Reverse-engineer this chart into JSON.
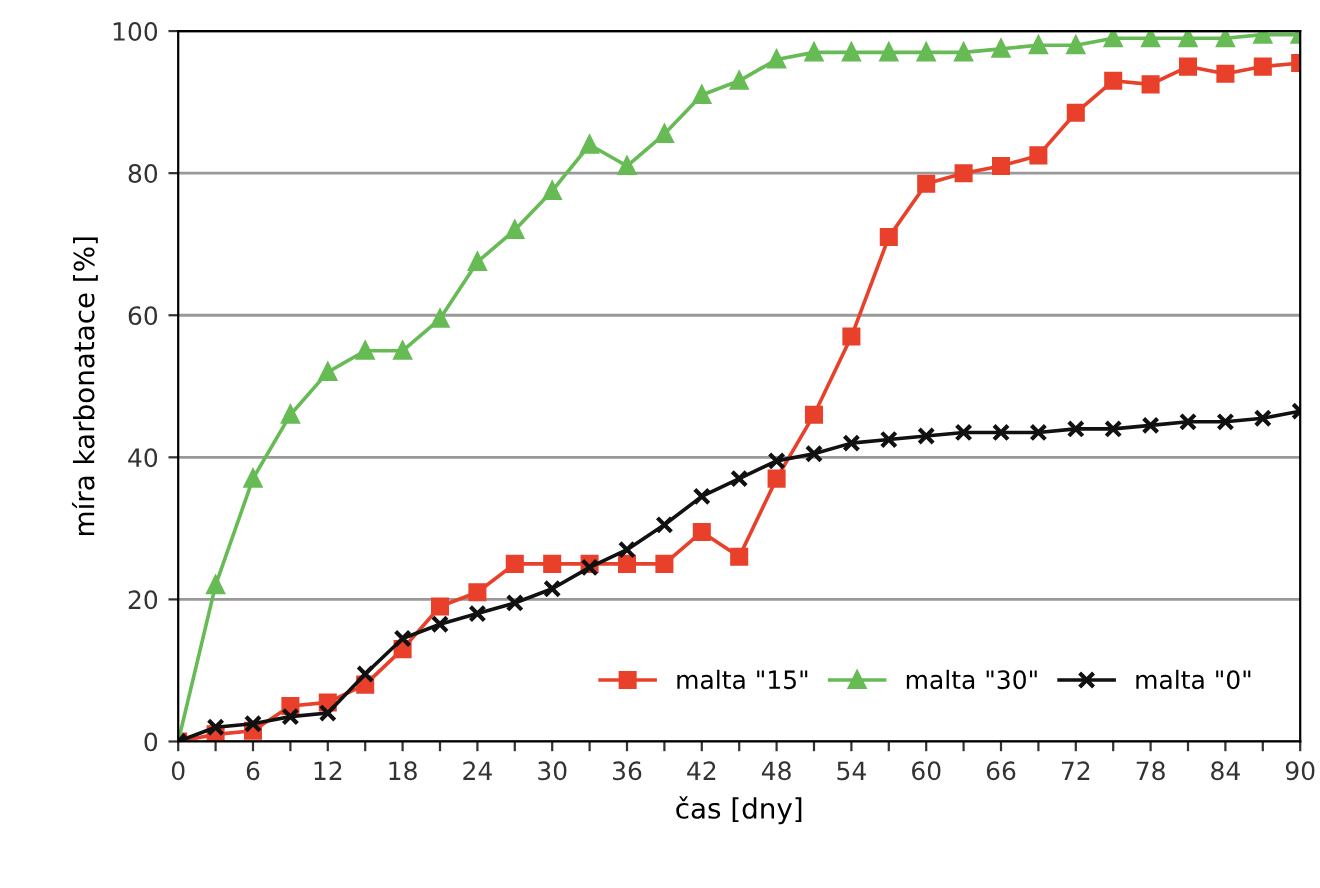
{
  "chart_data": {
    "type": "line",
    "xlabel": "čas [dny]",
    "ylabel": "míra karbonatace [%]",
    "x": [
      0,
      3,
      6,
      9,
      12,
      15,
      18,
      21,
      24,
      27,
      30,
      33,
      36,
      39,
      42,
      45,
      48,
      51,
      54,
      57,
      60,
      63,
      66,
      69,
      72,
      75,
      78,
      81,
      84,
      87,
      90
    ],
    "series": [
      {
        "name": "malta \"15\"",
        "color": "#e8402a",
        "marker": "square",
        "values": [
          0,
          1,
          1.5,
          5,
          5.5,
          8,
          13,
          19,
          21,
          25,
          25,
          25,
          25,
          25,
          29.5,
          26,
          37,
          46,
          57,
          71,
          78.5,
          80,
          81,
          82.5,
          88.5,
          93,
          92.5,
          95,
          94,
          95,
          95.5
        ]
      },
      {
        "name": "malta \"30\"",
        "color": "#66bb55",
        "marker": "triangle",
        "values": [
          0,
          22,
          37,
          46,
          52,
          55,
          55,
          59.5,
          67.5,
          72,
          77.5,
          84,
          81,
          85.5,
          91,
          93,
          96,
          97,
          97,
          97,
          97,
          97,
          97.5,
          98,
          98,
          99,
          99,
          99,
          99,
          99.5,
          99.5
        ]
      },
      {
        "name": "malta \"0\"",
        "color": "#111111",
        "marker": "cross",
        "values": [
          0,
          2,
          2.5,
          3.5,
          4,
          9.5,
          14.5,
          16.5,
          18,
          19.5,
          21.5,
          24.5,
          27,
          30.5,
          34.5,
          37,
          39.5,
          40.5,
          42,
          42.5,
          43,
          43.5,
          43.5,
          43.5,
          44,
          44,
          44.5,
          45,
          45,
          45.5,
          46.5
        ]
      }
    ],
    "xlim": [
      0,
      90
    ],
    "ylim": [
      0,
      100
    ],
    "xticks": [
      0,
      {
        "value": 3,
        "label": null
      },
      6,
      {
        "value": 9,
        "label": null
      },
      12,
      {
        "value": 15,
        "label": null
      },
      18,
      {
        "value": 21,
        "label": null
      },
      24,
      {
        "value": 27,
        "label": null
      },
      30,
      {
        "value": 33,
        "label": null
      },
      36,
      {
        "value": 39,
        "label": null
      },
      42,
      {
        "value": 45,
        "label": null
      },
      48,
      {
        "value": 51,
        "label": null
      },
      54,
      {
        "value": 57,
        "label": null
      },
      60,
      {
        "value": 63,
        "label": null
      },
      66,
      {
        "value": 69,
        "label": null
      },
      72,
      {
        "value": 75,
        "label": null
      },
      78,
      {
        "value": 81,
        "label": null
      },
      84,
      {
        "value": 87,
        "label": null
      },
      90
    ],
    "yticks": [
      0,
      20,
      40,
      60,
      80,
      100
    ],
    "grid": "y",
    "legend": "bottom right",
    "line_style": "solid"
  }
}
